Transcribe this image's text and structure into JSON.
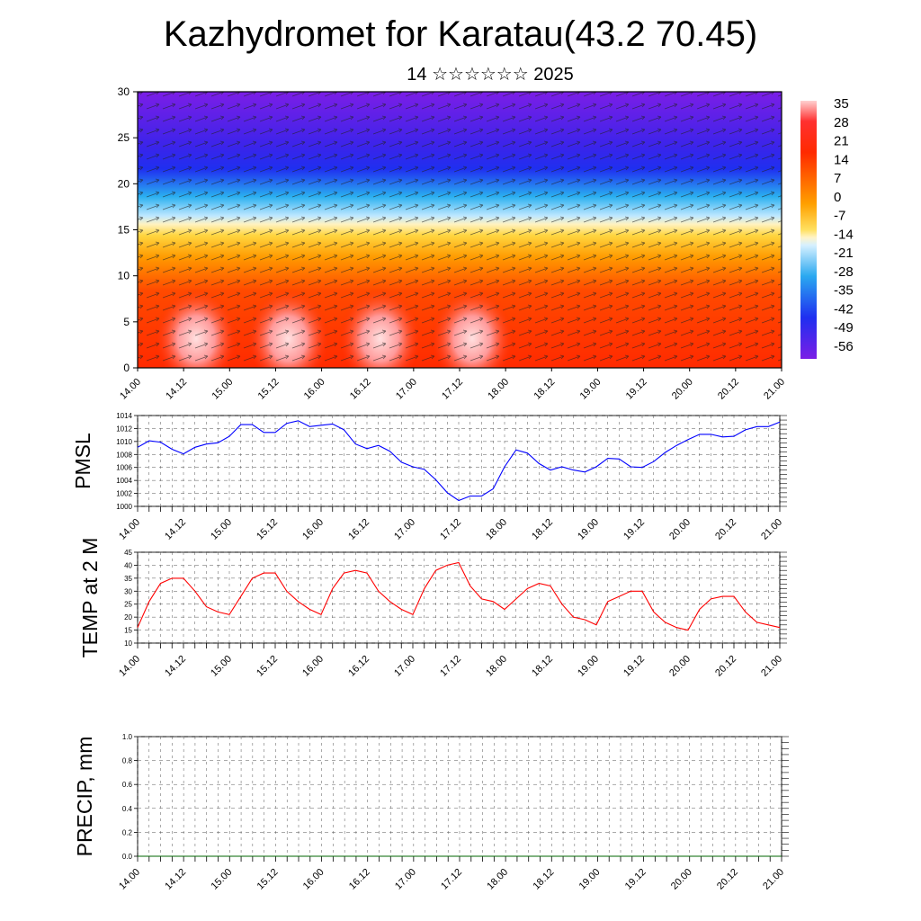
{
  "title": "Kazhydromet for Karatau(43.2 70.45)",
  "subtitle": "14 ☆☆☆☆☆☆ 2025",
  "time_labels": [
    "14.00",
    "14.12",
    "15.00",
    "15.12",
    "16.00",
    "16.12",
    "17.00",
    "17.12",
    "18.00",
    "18.12",
    "19.00",
    "19.12",
    "20.00",
    "20.12",
    "21.00"
  ],
  "colorbar": {
    "labels": [
      "35",
      "28",
      "21",
      "14",
      "7",
      "0",
      "-7",
      "-14",
      "-21",
      "-28",
      "-35",
      "-42",
      "-49",
      "-56"
    ]
  },
  "chart_data": [
    {
      "type": "heatmap",
      "ylim": [
        0,
        30
      ],
      "y_ticks": [
        "0",
        "5",
        "10",
        "15",
        "20",
        "25",
        "30"
      ],
      "x_ticks": [
        "14.00",
        "14.12",
        "15.00",
        "15.12",
        "16.00",
        "16.12",
        "17.00",
        "17.12",
        "18.00",
        "18.12",
        "19.00",
        "19.12",
        "20.00",
        "20.12",
        "21.00"
      ],
      "color_range": [
        -56,
        35
      ],
      "colors": {
        "cold": "#7b1ee6",
        "cool": "#1f2ff0",
        "mid": "#ffe28a",
        "warm": "#ff3300",
        "hot": "#ffd0d0"
      },
      "warm_maxima_x": [
        "14.12",
        "15.12",
        "16.12",
        "17.12"
      ]
    },
    {
      "type": "line",
      "ylabel": "PMSL",
      "ylim": [
        1000,
        1014
      ],
      "y_ticks": [
        "1000",
        "1002",
        "1004",
        "1006",
        "1008",
        "1010",
        "1012",
        "1014"
      ],
      "x_ticks": [
        "14.00",
        "14.12",
        "15.00",
        "15.12",
        "16.00",
        "16.12",
        "17.00",
        "17.12",
        "18.00",
        "18.12",
        "19.00",
        "19.12",
        "20.00",
        "20.12",
        "21.00"
      ],
      "series": [
        {
          "color": "#0000ff",
          "values": [
            1009.1,
            1010.1,
            1009.9,
            1008.8,
            1008.1,
            1009.1,
            1009.6,
            1009.8,
            1010.8,
            1012.6,
            1012.6,
            1011.4,
            1011.4,
            1012.8,
            1013.2,
            1012.3,
            1012.5,
            1012.7,
            1011.8,
            1009.6,
            1008.9,
            1009.4,
            1008.5,
            1006.8,
            1006.1,
            1005.7,
            1004.1,
            1002.1,
            1000.9,
            1001.6,
            1001.6,
            1002.7,
            1006.1,
            1008.7,
            1008.2,
            1006.6,
            1005.6,
            1006.1,
            1005.6,
            1005.3,
            1006.1,
            1007.4,
            1007.3,
            1006.1,
            1006.0,
            1006.9,
            1008.3,
            1009.4,
            1010.3,
            1011.1,
            1011.1,
            1010.7,
            1010.8,
            1011.8,
            1012.3,
            1012.3,
            1013.0
          ]
        }
      ]
    },
    {
      "type": "line",
      "ylabel": "TEMP at 2 M",
      "ylim": [
        10,
        45
      ],
      "y_ticks": [
        "10",
        "15",
        "20",
        "25",
        "30",
        "35",
        "40",
        "45"
      ],
      "x_ticks": [
        "14.00",
        "14.12",
        "15.00",
        "15.12",
        "16.00",
        "16.12",
        "17.00",
        "17.12",
        "18.00",
        "18.12",
        "19.00",
        "19.12",
        "20.00",
        "20.12",
        "21.00"
      ],
      "series": [
        {
          "color": "#ff0000",
          "values": [
            16,
            26,
            33,
            35,
            35,
            30,
            24,
            22,
            21,
            28,
            35,
            37,
            37,
            30,
            26,
            23,
            21,
            31,
            37,
            38,
            37,
            30,
            26,
            23,
            21,
            31,
            38,
            40,
            41,
            32,
            27,
            26,
            23,
            27,
            31,
            33,
            32,
            25,
            20,
            19,
            17,
            26,
            28,
            30,
            30,
            22,
            18,
            16,
            15,
            23,
            27,
            28,
            28,
            22,
            18,
            17,
            16
          ]
        }
      ]
    },
    {
      "type": "line",
      "ylabel": "PRECIP, mm",
      "ylim": [
        0,
        1
      ],
      "y_ticks": [
        "0.0",
        "0.2",
        "0.4",
        "0.6",
        "0.8",
        "1.0"
      ],
      "x_ticks": [
        "14.00",
        "14.12",
        "15.00",
        "15.12",
        "16.00",
        "16.12",
        "17.00",
        "17.12",
        "18.00",
        "18.12",
        "19.00",
        "19.12",
        "20.00",
        "20.12",
        "21.00"
      ],
      "series": [
        {
          "color": "#006400",
          "values": [
            0,
            0,
            0,
            0,
            0,
            0,
            0,
            0,
            0,
            0,
            0,
            0,
            0,
            0,
            0,
            0,
            0,
            0,
            0,
            0,
            0,
            0,
            0,
            0,
            0,
            0,
            0,
            0,
            0,
            0,
            0,
            0,
            0,
            0,
            0,
            0,
            0,
            0,
            0,
            0,
            0,
            0,
            0,
            0,
            0,
            0,
            0,
            0,
            0,
            0,
            0,
            0,
            0,
            0,
            0,
            0,
            0
          ]
        }
      ]
    }
  ]
}
